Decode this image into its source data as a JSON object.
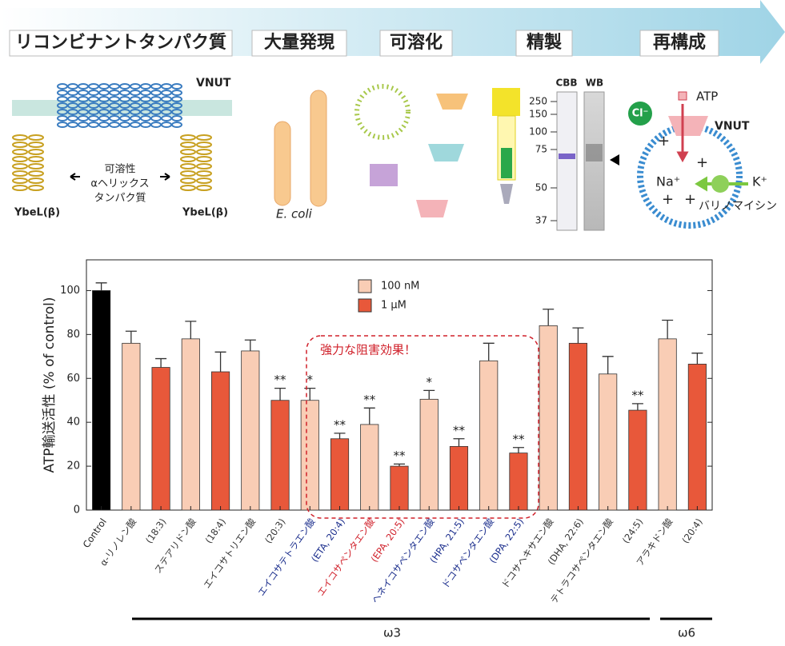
{
  "steps": [
    "リコンビナントタンパク質",
    "大量発現",
    "可溶化",
    "精製",
    "再構成"
  ],
  "diagram": {
    "vnut_top": "VNUT",
    "helix_label": [
      "可溶性",
      "αヘリックス",
      "タンパク質"
    ],
    "ybel_left": "YbeL(β)",
    "ybel_right": "YbeL(β)",
    "ecoli": "E. coli",
    "cbb": "CBB",
    "wb": "WB",
    "markers": [
      250,
      150,
      100,
      75,
      50,
      37
    ],
    "cl": "Cl⁻",
    "atp": "ATP",
    "vnut_right": "VNUT",
    "na": "Na⁺",
    "k": "K⁺",
    "valinomycin": "バリノマイシン"
  },
  "chart_data": {
    "type": "bar",
    "ylabel": "ATP輸送活性 (% of control)",
    "categories": [
      "Control",
      "α-リノレン酸",
      "(18:3)",
      "ステアリドン酸",
      "(18:4)",
      "エイコサトリエン酸",
      "(20:3)",
      "エイコサテトラエン酸",
      "(ETA, 20:4)",
      "エイコサペンタエン酸",
      "(EPA, 20:5)",
      "ヘネイコサペンタエン酸",
      "(HPA, 21:5)",
      "ドコサペンタエン酸",
      "(DPA, 22:5)",
      "ドコサヘキサエン酸",
      "(DHA, 22:6)",
      "テトラコサペンタエン酸",
      "(24:5)",
      "アラキドン酸",
      "(20:4)"
    ],
    "label_colors": [
      "#222",
      "#333",
      "#333",
      "#333",
      "#333",
      "#333",
      "#333",
      "#1a2d8c",
      "#1a2d8c",
      "#d0202a",
      "#d0202a",
      "#1a2d8c",
      "#1a2d8c",
      "#1a2d8c",
      "#1a2d8c",
      "#333",
      "#333",
      "#333",
      "#333",
      "#333",
      "#333"
    ],
    "values": [
      100,
      76,
      65,
      78,
      63,
      72.5,
      50,
      50,
      32.5,
      39,
      20,
      50.5,
      29,
      68,
      26,
      84,
      76,
      62,
      45.5,
      78,
      66.5
    ],
    "errors": [
      3.5,
      5.5,
      4,
      8,
      9,
      5,
      5.5,
      5.5,
      2.5,
      7.5,
      1,
      4,
      3.5,
      8,
      2.5,
      7.5,
      7,
      8,
      3,
      8.5,
      5
    ],
    "significance": [
      null,
      null,
      null,
      null,
      null,
      null,
      "**",
      "*",
      "**",
      "**",
      "**",
      "*",
      "**",
      null,
      "**",
      null,
      null,
      null,
      "**",
      null,
      null
    ],
    "bar_colors": [
      "#000000",
      "#f9cdb5",
      "#e8583a",
      "#f9cdb5",
      "#e8583a",
      "#f9cdb5",
      "#e8583a",
      "#f9cdb5",
      "#e8583a",
      "#f9cdb5",
      "#e8583a",
      "#f9cdb5",
      "#e8583a",
      "#f9cdb5",
      "#e8583a",
      "#f9cdb5",
      "#e8583a",
      "#f9cdb5",
      "#e8583a",
      "#f9cdb5",
      "#e8583a"
    ],
    "legend": [
      {
        "name": "100 nM",
        "color": "#f9cdb5"
      },
      {
        "name": "1 μM",
        "color": "#e8583a"
      }
    ],
    "annotation": "強力な阻害効果！",
    "groups": [
      "ω3",
      "ω6"
    ],
    "ylim": [
      0,
      114
    ],
    "yticks": [
      0,
      20,
      40,
      60,
      80,
      100
    ]
  }
}
